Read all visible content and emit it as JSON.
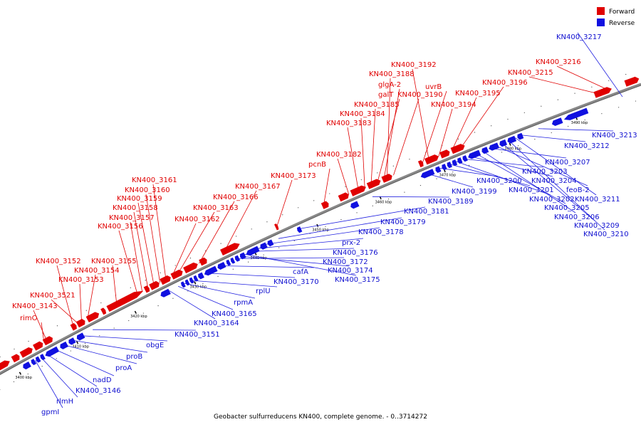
{
  "caption": "Geobacter sulfurreducens KN400, complete genome. - 0..3714272",
  "colors": {
    "forward": "#e00000",
    "reverse": "#1010e0",
    "forward_line": "#e00000",
    "reverse_line": "#2020e0"
  },
  "legend": [
    {
      "label": "Forward",
      "strand": "forward",
      "icon": "red-square-icon"
    },
    {
      "label": "Reverse",
      "strand": "reverse",
      "icon": "blue-square-icon"
    }
  ],
  "scale_ticks": [
    {
      "label": "3400 kbp",
      "pos": 3400
    },
    {
      "label": "3410 kbp",
      "pos": 3410
    },
    {
      "label": "3420 kbp",
      "pos": 3420
    },
    {
      "label": "3430 kbp",
      "pos": 3430
    },
    {
      "label": "3440 kbp",
      "pos": 3440
    },
    {
      "label": "3450 kbp",
      "pos": 3450
    },
    {
      "label": "3460 kbp",
      "pos": 3460
    },
    {
      "label": "3470 kbp",
      "pos": 3470
    },
    {
      "label": "3480 kbp",
      "pos": 3480
    },
    {
      "label": "3490 kbp",
      "pos": 3490
    }
  ],
  "forward_genes": [
    {
      "label": "rimO",
      "pos": 3405.5
    },
    {
      "label": "KN400_3143",
      "pos": 3406.0
    },
    {
      "label": "KN400_3521",
      "pos": 3411.5
    },
    {
      "label": "KN400_3153",
      "pos": 3412.0
    },
    {
      "label": "KN400_3154",
      "pos": 3413.0
    },
    {
      "label": "KN400_3152",
      "pos": 3410.6
    },
    {
      "label": "KN400_3155",
      "pos": 3418.0
    },
    {
      "label": "KN400_3156",
      "pos": 3421.5
    },
    {
      "label": "KN400_3157",
      "pos": 3422.3
    },
    {
      "label": "KN400_3158",
      "pos": 3423.3
    },
    {
      "label": "KN400_3159",
      "pos": 3424.3
    },
    {
      "label": "KN400_3160",
      "pos": 3425.3
    },
    {
      "label": "KN400_3161",
      "pos": 3426.3
    },
    {
      "label": "KN400_3162",
      "pos": 3427.3
    },
    {
      "label": "KN400_3163",
      "pos": 3428.3
    },
    {
      "label": "KN400_3166",
      "pos": 3431.8
    },
    {
      "label": "KN400_3167",
      "pos": 3436.0
    },
    {
      "label": "KN400_3173",
      "pos": 3444.5
    },
    {
      "label": "pcnB",
      "pos": 3452.0
    },
    {
      "label": "KN400_3182",
      "pos": 3456.0
    },
    {
      "label": "KN400_3183",
      "pos": 3457.5
    },
    {
      "label": "KN400_3184",
      "pos": 3458.5
    },
    {
      "label": "KN400_3185",
      "pos": 3459.5
    },
    {
      "label": "galT",
      "pos": 3460.5
    },
    {
      "label": "glgA-2",
      "pos": 3461.5
    },
    {
      "label": "KN400_3188",
      "pos": 3462.0
    },
    {
      "label": "KN400_3190",
      "pos": 3463.0
    },
    {
      "label": "uvrB",
      "pos": 3467.5
    },
    {
      "label": "KN400_3192",
      "pos": 3468.5
    },
    {
      "label": "KN400_3194",
      "pos": 3470.0
    },
    {
      "label": "KN400_3195",
      "pos": 3472.0
    },
    {
      "label": "KN400_3196",
      "pos": 3473.5
    },
    {
      "label": "KN400_3215",
      "pos": 3494.0
    },
    {
      "label": "KN400_3216",
      "pos": 3495.5
    }
  ],
  "reverse_genes": [
    {
      "label": "gpmI",
      "pos": 3403.0
    },
    {
      "label": "rlmH",
      "pos": 3404.0
    },
    {
      "label": "KN400_3146",
      "pos": 3405.0
    },
    {
      "label": "nadD",
      "pos": 3406.5
    },
    {
      "label": "proA",
      "pos": 3408.0
    },
    {
      "label": "proB",
      "pos": 3409.5
    },
    {
      "label": "obgE",
      "pos": 3411.0
    },
    {
      "label": "KN400_3151",
      "pos": 3413.0
    },
    {
      "label": "KN400_3164",
      "pos": 3426.0
    },
    {
      "label": "KN400_3165",
      "pos": 3427.5
    },
    {
      "label": "rpmA",
      "pos": 3428.5
    },
    {
      "label": "rplU",
      "pos": 3429.5
    },
    {
      "label": "KN400_3170",
      "pos": 3432.0
    },
    {
      "label": "cafA",
      "pos": 3434.5
    },
    {
      "label": "KN400_3172",
      "pos": 3437.0
    },
    {
      "label": "KN400_3174",
      "pos": 3437.8
    },
    {
      "label": "KN400_3175",
      "pos": 3438.5
    },
    {
      "label": "KN400_3176",
      "pos": 3439.5
    },
    {
      "label": "prx-2",
      "pos": 3440.5
    },
    {
      "label": "KN400_3178",
      "pos": 3442.0
    },
    {
      "label": "KN400_3179",
      "pos": 3444.0
    },
    {
      "label": "KN400_3181",
      "pos": 3447.5
    },
    {
      "label": "KN400_3189",
      "pos": 3459.0
    },
    {
      "label": "KN400_3199",
      "pos": 3467.5
    },
    {
      "label": "KN400_3200",
      "pos": 3469.5
    },
    {
      "label": "KN400_3201",
      "pos": 3471.0
    },
    {
      "label": "KN400_3202",
      "pos": 3472.0
    },
    {
      "label": "KN400_3203",
      "pos": 3473.0
    },
    {
      "label": "KN400_3204",
      "pos": 3474.0
    },
    {
      "label": "KN400_3205",
      "pos": 3475.0
    },
    {
      "label": "KN400_3206",
      "pos": 3476.0
    },
    {
      "label": "KN400_3207",
      "pos": 3477.0
    },
    {
      "label": "feoB-2",
      "pos": 3478.0
    },
    {
      "label": "KN400_3209",
      "pos": 3479.0
    },
    {
      "label": "KN400_3210",
      "pos": 3480.0
    },
    {
      "label": "KN400_3211",
      "pos": 3481.0
    },
    {
      "label": "KN400_3212",
      "pos": 3482.0
    },
    {
      "label": "KN400_3213",
      "pos": 3484.5
    },
    {
      "label": "KN400_3217",
      "pos": 3497.0
    }
  ]
}
